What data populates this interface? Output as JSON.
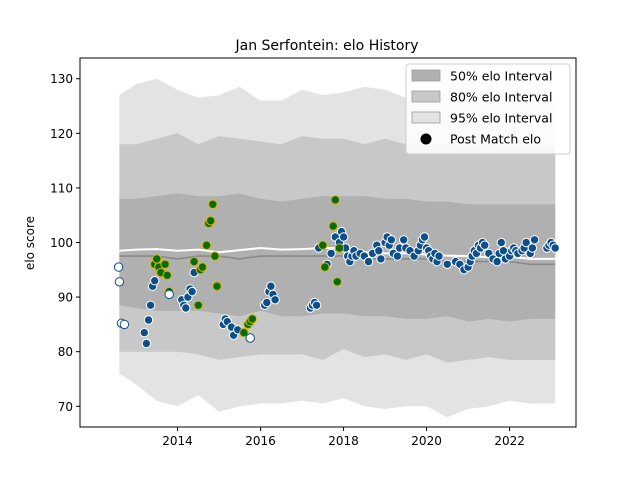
{
  "chart_data": {
    "type": "scatter",
    "title": "Jan Serfontein: elo History",
    "xlabel": "",
    "ylabel": "elo score",
    "xlim": [
      2011.65,
      2023.6
    ],
    "ylim": [
      66.2,
      133.8
    ],
    "x_ticks": [
      2014,
      2016,
      2018,
      2020,
      2022
    ],
    "y_ticks": [
      70,
      80,
      90,
      100,
      110,
      120,
      130
    ],
    "grid": false,
    "legend_position": "top-right",
    "legend": [
      {
        "label": "50% elo Interval",
        "color": "#b0b0b0"
      },
      {
        "label": "80% elo Interval",
        "color": "#c8c8c8"
      },
      {
        "label": "95% elo Interval",
        "color": "#e3e3e3"
      },
      {
        "label": "Post Match elo",
        "color": "#000000"
      }
    ],
    "colors": {
      "band50": "#b0b0b0",
      "band80": "#c8c8c8",
      "band95": "#e3e3e3",
      "median_line": "#8a8a8a",
      "mean_line": "#ffffff",
      "point_fill": "#0d4f8b",
      "point_edge": "#ffffff",
      "highlight_fill": "#0a6a12",
      "highlight_edge": "#d4b800",
      "early_fill": "#ffffff",
      "early_edge": "#0d4f8b"
    },
    "bands": {
      "x": [
        2012.6,
        2013.0,
        2013.5,
        2014.0,
        2014.5,
        2015.0,
        2015.5,
        2016.0,
        2016.5,
        2017.0,
        2017.5,
        2018.0,
        2018.5,
        2019.0,
        2019.5,
        2020.0,
        2020.5,
        2021.0,
        2021.5,
        2022.0,
        2022.5,
        2023.1
      ],
      "p95_low": [
        76.0,
        74.0,
        71.0,
        70.0,
        72.0,
        69.0,
        70.0,
        70.5,
        70.5,
        71.0,
        70.5,
        71.5,
        70.0,
        69.5,
        70.0,
        70.0,
        68.0,
        69.5,
        70.0,
        71.0,
        70.5,
        70.5
      ],
      "p95_high": [
        127.0,
        129.0,
        130.0,
        128.0,
        126.5,
        127.0,
        128.5,
        126.0,
        126.0,
        128.0,
        127.0,
        127.5,
        128.5,
        128.0,
        126.5,
        127.0,
        127.5,
        127.5,
        128.0,
        126.5,
        127.0,
        126.0
      ],
      "p80_low": [
        80.0,
        80.0,
        80.0,
        80.0,
        79.5,
        78.5,
        79.0,
        79.5,
        79.5,
        79.5,
        78.5,
        80.5,
        79.0,
        79.5,
        78.5,
        79.5,
        78.0,
        78.5,
        79.0,
        78.5,
        78.5,
        78.5
      ],
      "p80_high": [
        118.0,
        118.0,
        119.0,
        120.0,
        118.0,
        119.5,
        119.0,
        118.5,
        118.0,
        119.5,
        119.0,
        119.0,
        118.0,
        119.0,
        118.0,
        118.5,
        118.0,
        117.5,
        118.0,
        117.5,
        117.5,
        117.5
      ],
      "p50_low": [
        88.5,
        88.0,
        87.5,
        87.5,
        87.5,
        87.0,
        86.5,
        87.5,
        86.5,
        86.5,
        87.0,
        87.0,
        86.5,
        86.5,
        86.0,
        86.0,
        86.5,
        85.5,
        86.0,
        85.5,
        86.0,
        86.0
      ],
      "p50_high": [
        108.0,
        108.0,
        108.5,
        109.0,
        108.5,
        108.5,
        109.0,
        108.0,
        107.5,
        108.0,
        108.5,
        108.5,
        108.5,
        108.0,
        108.0,
        107.5,
        107.5,
        107.0,
        107.0,
        107.0,
        107.0,
        107.0
      ],
      "median": [
        97.5,
        97.5,
        97.5,
        97.0,
        97.5,
        97.5,
        97.0,
        97.5,
        97.5,
        97.5,
        97.5,
        97.5,
        97.0,
        97.0,
        97.0,
        97.0,
        96.5,
        96.5,
        96.5,
        96.5,
        96.0,
        96.0
      ],
      "mean": [
        98.5,
        98.7,
        98.8,
        98.5,
        98.7,
        98.2,
        98.6,
        99.0,
        98.7,
        98.8,
        99.0,
        99.0,
        98.2,
        98.0,
        98.0,
        97.8,
        97.6,
        97.5,
        97.3,
        97.4,
        97.0,
        97.0
      ]
    },
    "points": {
      "early": {
        "x": [
          2012.58,
          2012.6,
          2012.65,
          2012.72,
          2013.8,
          2015.75
        ],
        "y": [
          95.5,
          92.8,
          85.2,
          85.0,
          90.5,
          82.5
        ]
      },
      "highlight": {
        "x": [
          2013.45,
          2013.5,
          2013.55,
          2013.6,
          2013.7,
          2013.75,
          2013.8,
          2014.4,
          2014.5,
          2014.55,
          2014.6,
          2014.7,
          2014.75,
          2014.8,
          2014.85,
          2014.9,
          2014.95,
          2015.6,
          2015.7,
          2015.75,
          2015.8,
          2017.5,
          2017.55,
          2017.75,
          2017.8,
          2017.85,
          2017.9
        ],
        "y": [
          96.0,
          97.0,
          95.5,
          94.5,
          96.0,
          94.0,
          91.0,
          96.5,
          88.5,
          95.0,
          95.5,
          99.5,
          103.5,
          104.0,
          107.0,
          97.5,
          92.0,
          83.5,
          85.0,
          85.5,
          86.0,
          99.5,
          95.5,
          103.0,
          107.8,
          92.8,
          99.0
        ],
        "_comment_removed": ""
      },
      "normal": {
        "x": [
          2013.2,
          2013.25,
          2013.3,
          2013.35,
          2013.4,
          2013.45,
          2014.1,
          2014.15,
          2014.2,
          2014.25,
          2014.3,
          2014.35,
          2014.4,
          2015.1,
          2015.15,
          2015.2,
          2015.3,
          2015.35,
          2015.45,
          2016.1,
          2016.15,
          2016.2,
          2016.25,
          2016.3,
          2016.35,
          2017.2,
          2017.25,
          2017.3,
          2017.35,
          2017.4,
          2017.6,
          2017.7,
          2017.8,
          2017.9,
          2017.95,
          2018.0,
          2018.05,
          2018.1,
          2018.15,
          2018.2,
          2018.25,
          2018.3,
          2018.4,
          2018.5,
          2018.6,
          2018.7,
          2018.8,
          2018.85,
          2018.9,
          2019.0,
          2019.05,
          2019.1,
          2019.15,
          2019.2,
          2019.3,
          2019.35,
          2019.45,
          2019.5,
          2019.6,
          2019.7,
          2019.8,
          2019.85,
          2019.9,
          2019.95,
          2020.0,
          2020.05,
          2020.1,
          2020.15,
          2020.2,
          2020.25,
          2020.3,
          2020.5,
          2020.7,
          2020.8,
          2020.9,
          2021.0,
          2021.05,
          2021.1,
          2021.15,
          2021.2,
          2021.25,
          2021.3,
          2021.35,
          2021.4,
          2021.5,
          2021.6,
          2021.7,
          2021.75,
          2021.8,
          2021.85,
          2021.9,
          2022.0,
          2022.05,
          2022.1,
          2022.15,
          2022.2,
          2022.3,
          2022.35,
          2022.4,
          2022.5,
          2022.55,
          2022.6,
          2022.9,
          2022.95,
          2023.0,
          2023.05,
          2023.1
        ],
        "y": [
          83.5,
          81.5,
          85.8,
          88.5,
          92.0,
          93.0,
          89.5,
          88.5,
          88.0,
          90.0,
          91.5,
          91.0,
          94.5,
          85.0,
          86.0,
          85.5,
          84.5,
          83.0,
          84.0,
          88.5,
          89.0,
          91.0,
          92.0,
          90.5,
          89.5,
          88.0,
          88.5,
          89.0,
          88.5,
          99.0,
          96.0,
          98.0,
          101.0,
          100.0,
          102.0,
          101.0,
          99.0,
          97.5,
          96.5,
          97.5,
          98.5,
          97.5,
          98.0,
          97.5,
          96.5,
          98.0,
          99.5,
          98.5,
          97.0,
          100.0,
          101.0,
          99.5,
          100.5,
          98.0,
          97.5,
          99.0,
          100.5,
          99.0,
          98.5,
          97.5,
          98.5,
          99.5,
          100.5,
          101.0,
          99.0,
          98.5,
          97.5,
          97.0,
          98.0,
          96.5,
          97.5,
          96.0,
          96.5,
          96.0,
          95.0,
          95.5,
          96.5,
          97.5,
          98.5,
          98.0,
          99.5,
          99.0,
          100.0,
          99.5,
          98.0,
          97.0,
          96.5,
          98.0,
          100.0,
          98.5,
          97.0,
          97.5,
          98.5,
          99.0,
          98.5,
          98.0,
          98.5,
          99.0,
          100.0,
          98.0,
          99.0,
          100.5,
          99.0,
          99.5,
          100.0,
          99.5,
          99.0
        ]
      }
    }
  }
}
